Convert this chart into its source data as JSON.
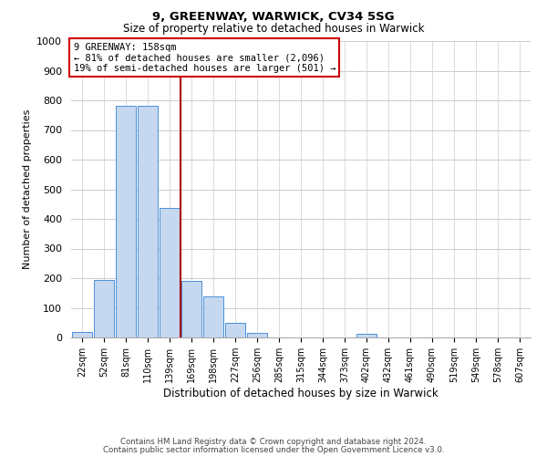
{
  "title": "9, GREENWAY, WARWICK, CV34 5SG",
  "subtitle": "Size of property relative to detached houses in Warwick",
  "xlabel": "Distribution of detached houses by size in Warwick",
  "ylabel": "Number of detached properties",
  "bar_labels": [
    "22sqm",
    "52sqm",
    "81sqm",
    "110sqm",
    "139sqm",
    "169sqm",
    "198sqm",
    "227sqm",
    "256sqm",
    "285sqm",
    "315sqm",
    "344sqm",
    "373sqm",
    "402sqm",
    "432sqm",
    "461sqm",
    "490sqm",
    "519sqm",
    "549sqm",
    "578sqm",
    "607sqm"
  ],
  "bar_values": [
    20,
    195,
    783,
    783,
    438,
    192,
    140,
    50,
    15,
    0,
    0,
    0,
    0,
    13,
    0,
    0,
    0,
    0,
    0,
    0,
    0
  ],
  "bar_color": "#c5d8f0",
  "bar_edge_color": "#4a90d9",
  "ylim": [
    0,
    1000
  ],
  "yticks": [
    0,
    100,
    200,
    300,
    400,
    500,
    600,
    700,
    800,
    900,
    1000
  ],
  "vline_color": "#aa0000",
  "annotation_box_text": "9 GREENWAY: 158sqm\n← 81% of detached houses are smaller (2,096)\n19% of semi-detached houses are larger (501) →",
  "annotation_box_color": "#ffffff",
  "annotation_box_edge_color": "#cc0000",
  "footer_line1": "Contains HM Land Registry data © Crown copyright and database right 2024.",
  "footer_line2": "Contains public sector information licensed under the Open Government Licence v3.0.",
  "background_color": "#ffffff",
  "grid_color": "#cccccc"
}
